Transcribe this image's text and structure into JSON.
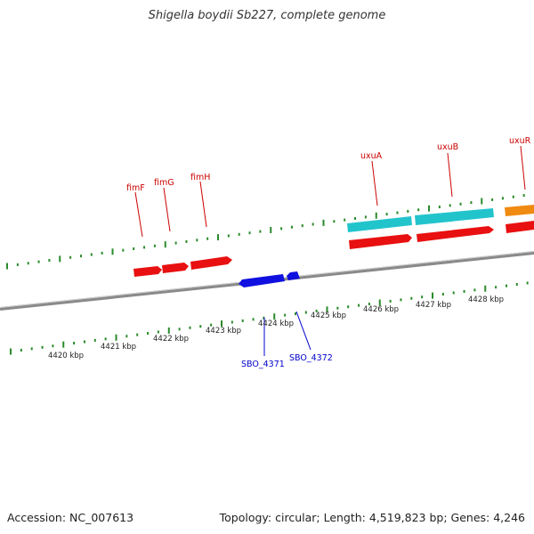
{
  "title": "Shigella boydii Sb227, complete genome",
  "footer": {
    "accession": "Accession: NC_007613",
    "topology": "Topology: circular; Length: 4,519,823 bp; Genes: 4,246"
  },
  "scale_labels": [
    {
      "text": "4420 kbp",
      "kbp": 4420
    },
    {
      "text": "4421 kbp",
      "kbp": 4421
    },
    {
      "text": "4422 kbp",
      "kbp": 4422
    },
    {
      "text": "4423 kbp",
      "kbp": 4423
    },
    {
      "text": "4424 kbp",
      "kbp": 4424
    },
    {
      "text": "4425 kbp",
      "kbp": 4425
    },
    {
      "text": "4426 kbp",
      "kbp": 4426
    },
    {
      "text": "4427 kbp",
      "kbp": 4427
    },
    {
      "text": "4428 kbp",
      "kbp": 4428
    }
  ],
  "colors": {
    "forward_cds": "#e81010",
    "reverse_cds": "#1010e0",
    "feature_cyan": "#22c4cc",
    "feature_orange": "#f08a10",
    "backbone": "#8a8a8a",
    "ticks": "#2a8a2a",
    "label_forward": "#cc0000",
    "label_reverse": "#0000cc"
  },
  "gene_labels_forward": [
    "fimF",
    "fimG",
    "fimH",
    "uxuA",
    "uxuB",
    "uxuR"
  ],
  "gene_labels_reverse": [
    "SBO_4371",
    "SBO_4372"
  ]
}
